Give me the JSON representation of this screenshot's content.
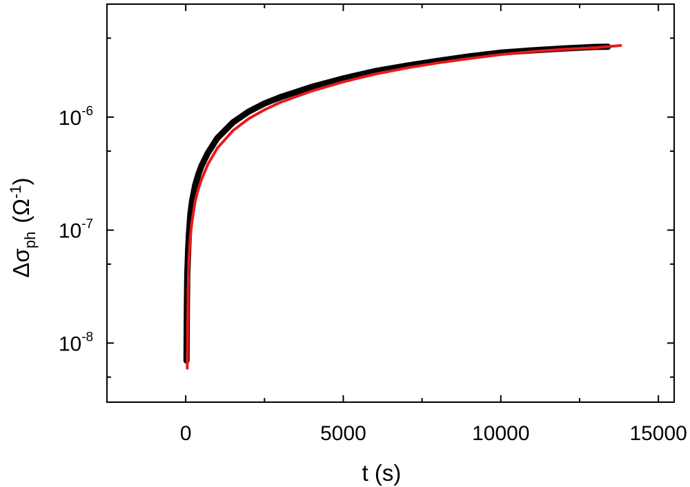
{
  "chart_data": {
    "type": "line",
    "xlabel": "t (s)",
    "ylabel": {
      "symbol": "Δσ",
      "subscript": "ph",
      "unit_base": "(Ω",
      "unit_exponent": "-1",
      "unit_close": ")"
    },
    "xlim": [
      -2500,
      15500
    ],
    "ylim": [
      3e-09,
      1e-05
    ],
    "yscale": "log",
    "x_ticks": [
      {
        "value": 0,
        "label": "0"
      },
      {
        "value": 5000,
        "label": "5000"
      },
      {
        "value": 10000,
        "label": "10000"
      },
      {
        "value": 15000,
        "label": "15000"
      }
    ],
    "y_ticks": [
      {
        "value": 1e-08,
        "base": "10",
        "exp": "-8"
      },
      {
        "value": 1e-07,
        "base": "10",
        "exp": "-7"
      },
      {
        "value": 1e-06,
        "base": "10",
        "exp": "-6"
      }
    ],
    "grid": false,
    "legend": "none",
    "series": [
      {
        "color": "#000000",
        "style": "thick-markers",
        "x": [
          25,
          35,
          50,
          75,
          100,
          150,
          200,
          300,
          400,
          500,
          700,
          1000,
          1500,
          2000,
          2500,
          3000,
          4000,
          5000,
          6000,
          7000,
          8000,
          9000,
          10000,
          11000,
          12000,
          13000,
          13400
        ],
        "y": [
          7e-09,
          2e-08,
          4e-08,
          6.5e-08,
          9e-08,
          1.4e-07,
          1.8e-07,
          2.5e-07,
          3.1e-07,
          3.7e-07,
          4.8e-07,
          6.5e-07,
          9e-07,
          1.12e-06,
          1.32e-06,
          1.5e-06,
          1.85e-06,
          2.2e-06,
          2.55e-06,
          2.85e-06,
          3.15e-06,
          3.45e-06,
          3.72e-06,
          3.9e-06,
          4.05e-06,
          4.18e-06,
          4.2e-06
        ]
      },
      {
        "color": "#e8191b",
        "style": "line",
        "x": [
          50,
          75,
          100,
          150,
          200,
          300,
          400,
          500,
          700,
          1000,
          1500,
          2000,
          2500,
          3000,
          4000,
          5000,
          6000,
          7000,
          8000,
          9000,
          10000,
          11000,
          12000,
          13000,
          13800
        ],
        "y": [
          6e-09,
          3e-08,
          5.5e-08,
          9e-08,
          1.2e-07,
          1.8e-07,
          2.3e-07,
          2.8e-07,
          3.8e-07,
          5.3e-07,
          7.6e-07,
          9.7e-07,
          1.16e-06,
          1.35e-06,
          1.7e-06,
          2.05e-06,
          2.4e-06,
          2.72e-06,
          3.02e-06,
          3.3e-06,
          3.58e-06,
          3.8e-06,
          3.98e-06,
          4.12e-06,
          4.3e-06
        ]
      }
    ]
  }
}
